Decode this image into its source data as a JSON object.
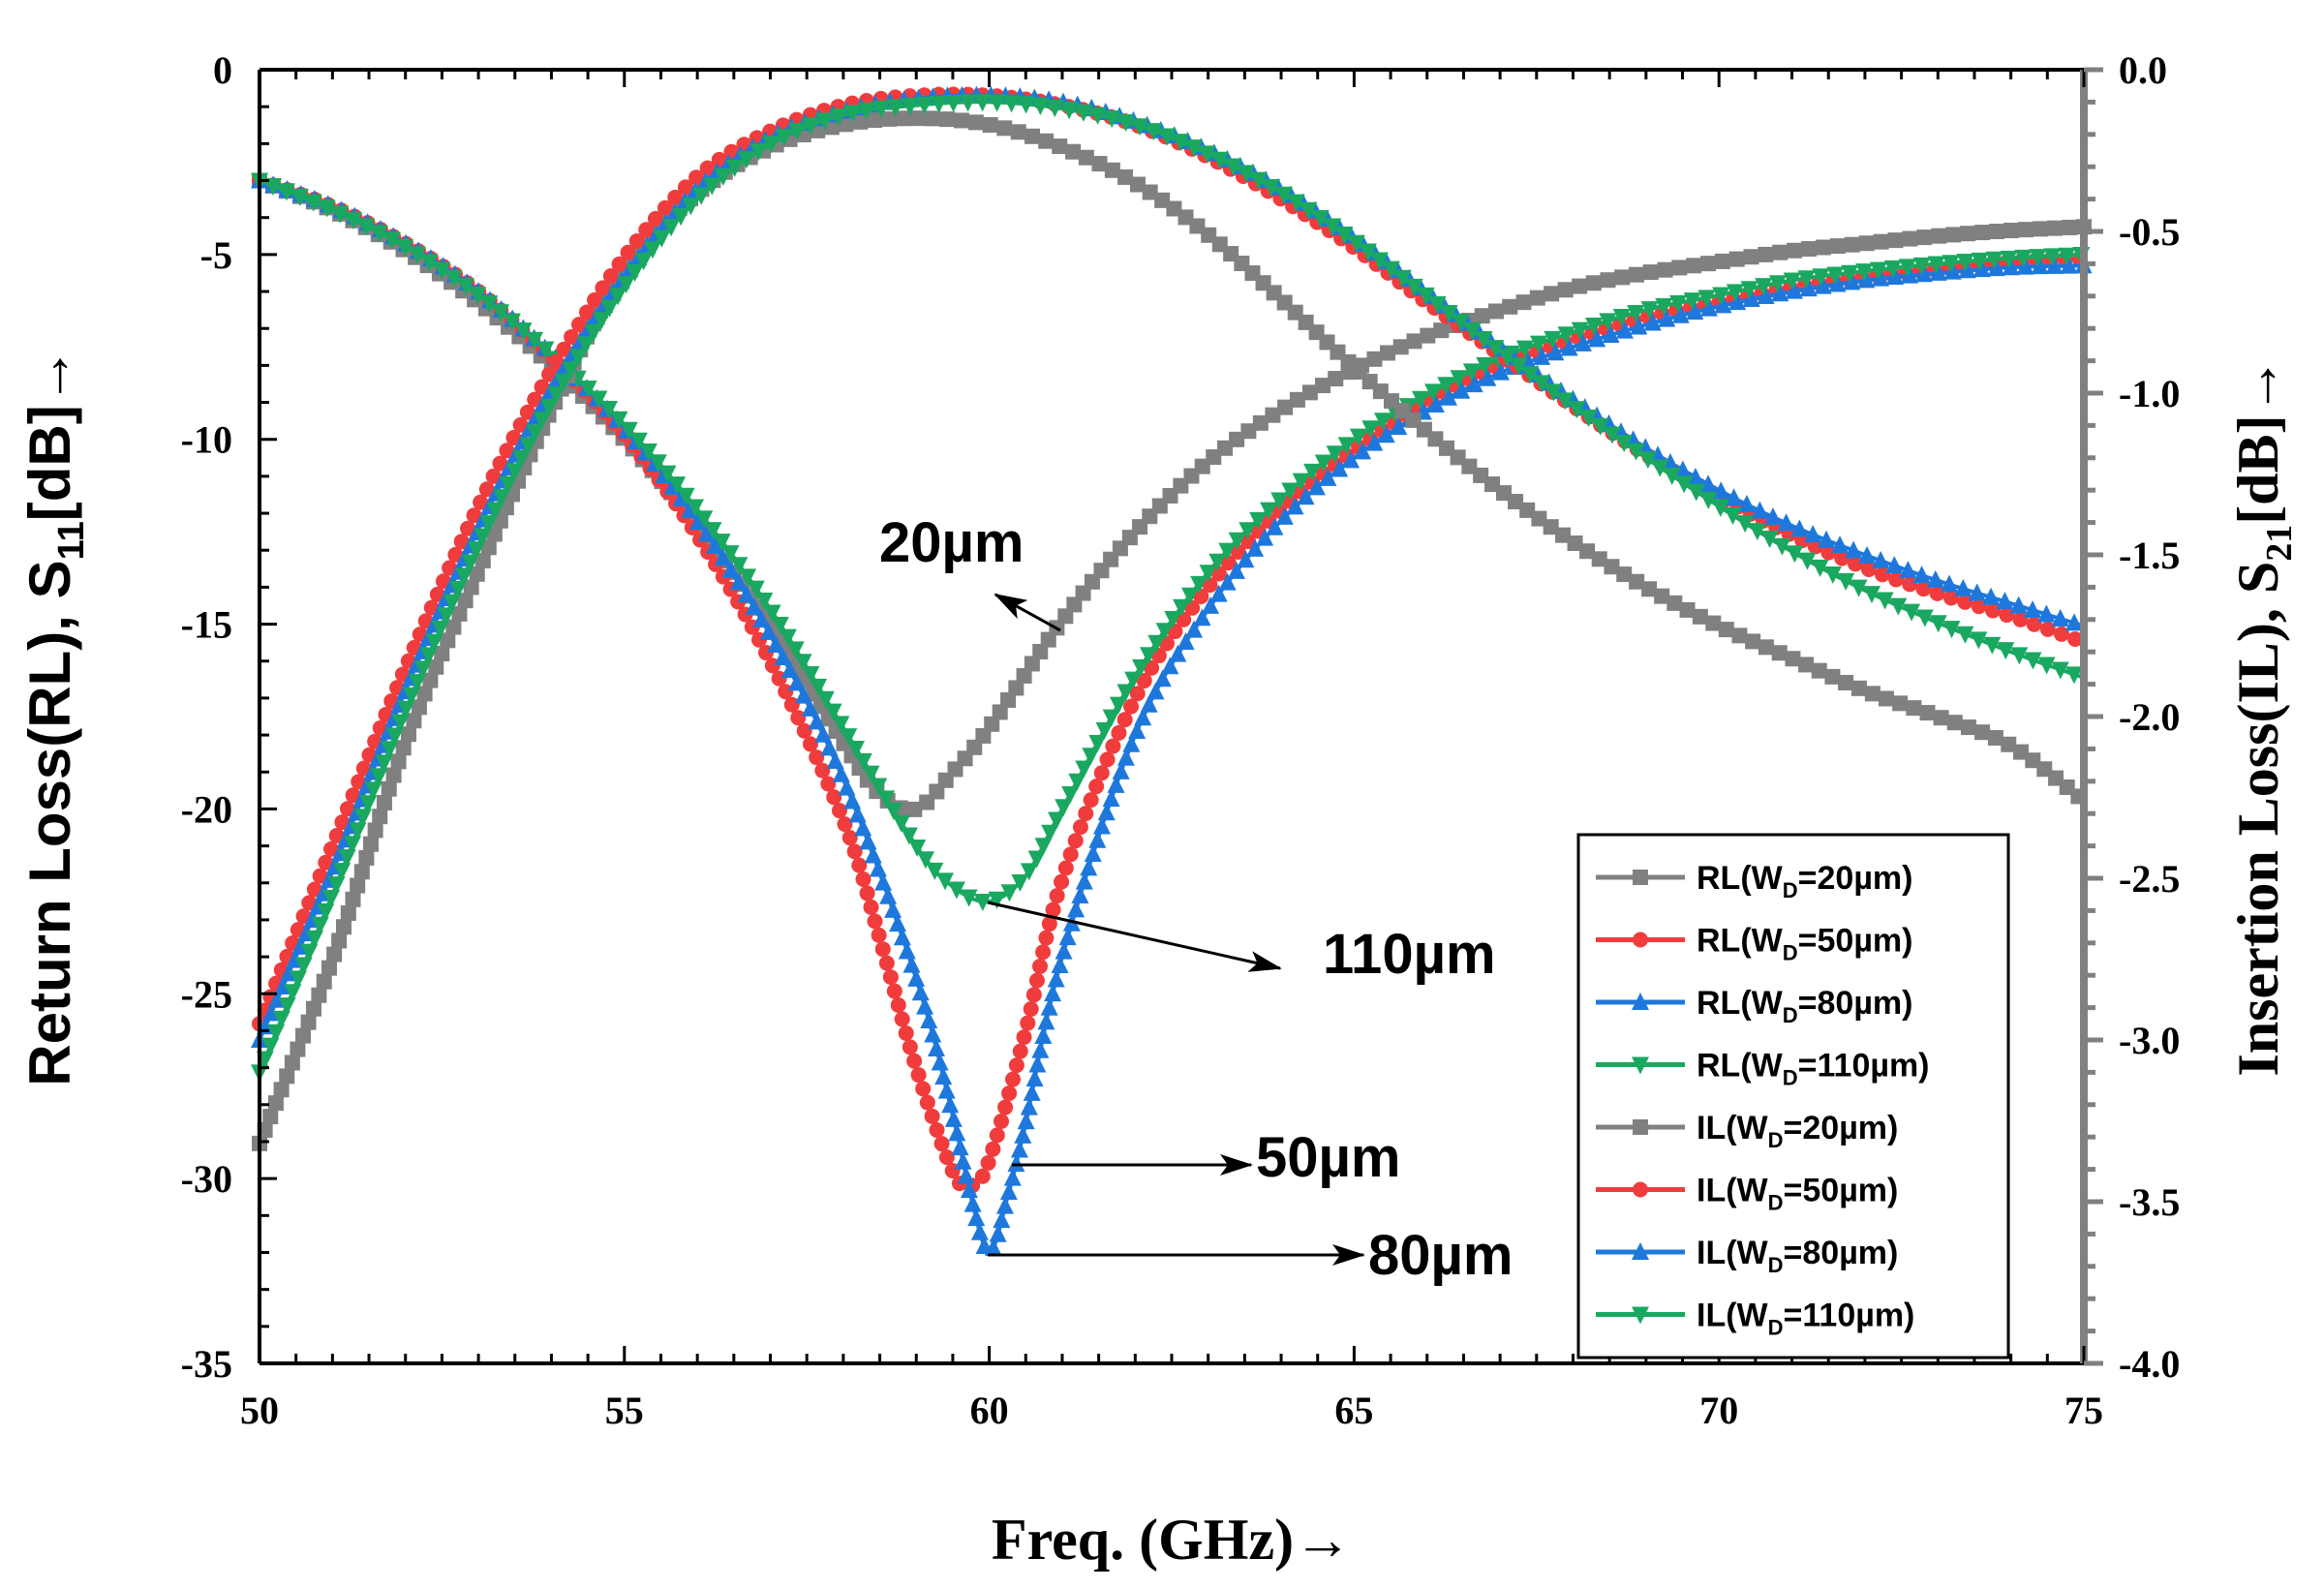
{
  "chart_data": {
    "type": "line",
    "title": "",
    "xlabel": "Freq. (GHz)→",
    "ylabel_left": {
      "prefix": "Return Loss(RL), S",
      "sub": "11",
      "suffix": "[dB]→"
    },
    "ylabel_right": {
      "prefix": "Insertion Loss(IL), S",
      "sub": "21",
      "suffix": "[dB]→"
    },
    "xlim": [
      50,
      75
    ],
    "ylim_left": [
      -35,
      0
    ],
    "ylim_right": [
      -4.0,
      0.0
    ],
    "x_ticks": [
      "50",
      "55",
      "60",
      "65",
      "70",
      "75"
    ],
    "y_left_ticks": [
      "0",
      "-5",
      "-10",
      "-15",
      "-20",
      "-25",
      "-30",
      "-35"
    ],
    "y_right_ticks": [
      "0.0",
      "-0.5",
      "-1.0",
      "-1.5",
      "-2.0",
      "-2.5",
      "-3.0",
      "-3.5",
      "-4.0"
    ],
    "grid": false,
    "legend_position": "bottom-right",
    "series": [
      {
        "name": "RL(W",
        "sub": "D",
        "name_end": "=20µm)",
        "axis": "left",
        "color": "#808080",
        "marker": "square",
        "x": [
          50,
          51,
          52,
          53,
          54,
          55,
          56,
          57,
          58,
          58.5,
          59,
          59.5,
          60,
          61,
          62,
          63,
          64,
          65,
          66,
          67,
          68,
          69,
          70,
          71,
          72,
          73,
          74,
          75
        ],
        "y": [
          -3,
          -3.8,
          -4.9,
          -6.3,
          -8,
          -10,
          -12.3,
          -15,
          -18.2,
          -19.6,
          -20,
          -19,
          -17.8,
          -14.9,
          -12.5,
          -10.6,
          -9.2,
          -8.1,
          -7.2,
          -6.5,
          -5.9,
          -5.5,
          -5.2,
          -4.9,
          -4.7,
          -4.5,
          -4.35,
          -4.25
        ]
      },
      {
        "name": "RL(W",
        "sub": "D",
        "name_end": "=50µm)",
        "axis": "left",
        "color": "#f03c3c",
        "marker": "circle",
        "x": [
          50,
          51,
          52,
          53,
          54,
          55,
          56,
          57,
          58,
          58.5,
          59,
          59.5,
          59.75,
          60,
          60.5,
          61,
          62,
          63,
          64,
          65,
          66,
          67,
          68,
          69,
          70,
          71,
          72,
          73,
          74,
          75
        ],
        "y": [
          -3,
          -3.7,
          -4.7,
          -6,
          -7.8,
          -9.9,
          -12.6,
          -16,
          -20.3,
          -23.5,
          -27,
          -29.8,
          -30.2,
          -29.5,
          -26,
          -21.9,
          -17,
          -14,
          -11.9,
          -10.3,
          -9,
          -8,
          -7.3,
          -6.7,
          -6.3,
          -5.9,
          -5.6,
          -5.4,
          -5.2,
          -5.1
        ]
      },
      {
        "name": "RL(W",
        "sub": "D",
        "name_end": "=80µm)",
        "axis": "left",
        "color": "#1e78dc",
        "marker": "triangle-up",
        "x": [
          50,
          51,
          52,
          53,
          54,
          55,
          56,
          57,
          58,
          59,
          59.5,
          59.75,
          60,
          60.25,
          60.5,
          61,
          62,
          63,
          64,
          65,
          66,
          67,
          68,
          69,
          70,
          71,
          72,
          73,
          74,
          75
        ],
        "y": [
          -3,
          -3.7,
          -4.7,
          -6,
          -7.7,
          -9.7,
          -12.2,
          -15.3,
          -19.2,
          -24.6,
          -28.3,
          -30.5,
          -32,
          -30.5,
          -28.5,
          -24,
          -18,
          -14.6,
          -12.2,
          -10.5,
          -9.2,
          -8.2,
          -7.5,
          -6.9,
          -6.4,
          -6,
          -5.7,
          -5.5,
          -5.35,
          -5.3
        ]
      },
      {
        "name": "RL(W",
        "sub": "D",
        "name_end": "=110µm)",
        "axis": "left",
        "color": "#1aa860",
        "marker": "triangle-down",
        "x": [
          50,
          51,
          52,
          53,
          54,
          55,
          56,
          57,
          58,
          59,
          59.5,
          60,
          60.5,
          61,
          62,
          63,
          64,
          65,
          66,
          67,
          68,
          69,
          70,
          71,
          72,
          73,
          74,
          75
        ],
        "y": [
          -3,
          -3.8,
          -4.8,
          -6.1,
          -7.7,
          -9.6,
          -11.9,
          -14.6,
          -17.8,
          -21,
          -22.1,
          -22.5,
          -21.8,
          -20,
          -16.4,
          -13.6,
          -11.6,
          -10,
          -8.8,
          -7.8,
          -7.1,
          -6.5,
          -6.1,
          -5.7,
          -5.45,
          -5.25,
          -5.1,
          -5
        ]
      },
      {
        "name": "IL(W",
        "sub": "D",
        "name_end": "=20µm)",
        "axis": "right",
        "color": "#808080",
        "marker": "square",
        "x": [
          50,
          51,
          52,
          53,
          54,
          55,
          56,
          57,
          58,
          59,
          60,
          61,
          62,
          63,
          64,
          65,
          66,
          67,
          68,
          69,
          70,
          71,
          72,
          73,
          74,
          75
        ],
        "y": [
          -3.32,
          -2.75,
          -2.08,
          -1.55,
          -1.05,
          -0.62,
          -0.38,
          -0.24,
          -0.17,
          -0.15,
          -0.17,
          -0.24,
          -0.35,
          -0.51,
          -0.71,
          -0.92,
          -1.12,
          -1.3,
          -1.46,
          -1.6,
          -1.72,
          -1.82,
          -1.92,
          -2.0,
          -2.09,
          -2.26
        ]
      },
      {
        "name": "IL(W",
        "sub": "D",
        "name_end": "=50µm)",
        "axis": "right",
        "color": "#f03c3c",
        "marker": "circle",
        "x": [
          50,
          51,
          52,
          53,
          54,
          55,
          56,
          57,
          58,
          59,
          60,
          61,
          62,
          63,
          64,
          65,
          66,
          67,
          68,
          69,
          70,
          71,
          72,
          73,
          74,
          75
        ],
        "y": [
          -2.95,
          -2.4,
          -1.85,
          -1.35,
          -0.93,
          -0.58,
          -0.33,
          -0.19,
          -0.11,
          -0.08,
          -0.08,
          -0.11,
          -0.17,
          -0.27,
          -0.4,
          -0.55,
          -0.72,
          -0.88,
          -1.04,
          -1.19,
          -1.32,
          -1.44,
          -1.54,
          -1.62,
          -1.69,
          -1.77
        ]
      },
      {
        "name": "IL(W",
        "sub": "D",
        "name_end": "=80µm)",
        "axis": "right",
        "color": "#1e78dc",
        "marker": "triangle-up",
        "x": [
          50,
          51,
          52,
          53,
          54,
          55,
          56,
          57,
          58,
          59,
          60,
          61,
          62,
          63,
          64,
          65,
          66,
          67,
          68,
          69,
          70,
          71,
          72,
          73,
          74,
          75
        ],
        "y": [
          -3.0,
          -2.48,
          -1.92,
          -1.42,
          -0.99,
          -0.64,
          -0.37,
          -0.21,
          -0.13,
          -0.09,
          -0.08,
          -0.1,
          -0.16,
          -0.25,
          -0.37,
          -0.52,
          -0.69,
          -0.86,
          -1.02,
          -1.17,
          -1.3,
          -1.41,
          -1.5,
          -1.58,
          -1.65,
          -1.72
        ]
      },
      {
        "name": "IL(W",
        "sub": "D",
        "name_end": "=110µm)",
        "axis": "right",
        "color": "#1aa860",
        "marker": "triangle-down",
        "x": [
          50,
          51,
          52,
          53,
          54,
          55,
          56,
          57,
          58,
          59,
          60,
          61,
          62,
          63,
          64,
          65,
          66,
          67,
          68,
          69,
          70,
          71,
          72,
          73,
          74,
          75
        ],
        "y": [
          -3.1,
          -2.55,
          -1.98,
          -1.47,
          -1.03,
          -0.67,
          -0.4,
          -0.23,
          -0.14,
          -0.11,
          -0.1,
          -0.12,
          -0.17,
          -0.26,
          -0.38,
          -0.53,
          -0.7,
          -0.87,
          -1.04,
          -1.2,
          -1.35,
          -1.49,
          -1.61,
          -1.71,
          -1.8,
          -1.88
        ]
      }
    ],
    "annotations": [
      {
        "label": "20µm",
        "points_to": [
          60.5,
          -18.6
        ]
      },
      {
        "label": "110µm",
        "points_to": [
          60,
          -22.5
        ]
      },
      {
        "label": "50µm",
        "points_to": [
          60.4,
          -29.8
        ]
      },
      {
        "label": "80µm",
        "points_to": [
          60,
          -32
        ]
      }
    ]
  }
}
